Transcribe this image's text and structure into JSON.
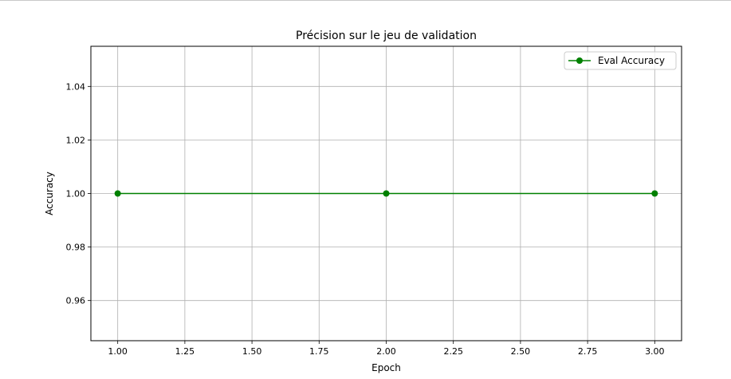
{
  "chart_data": {
    "type": "line",
    "title": "Précision sur le jeu de validation",
    "xlabel": "Epoch",
    "ylabel": "Accuracy",
    "xlim": [
      0.9,
      3.1
    ],
    "ylim": [
      0.945,
      1.055
    ],
    "xticks": [
      1.0,
      1.25,
      1.5,
      1.75,
      2.0,
      2.25,
      2.5,
      2.75,
      3.0
    ],
    "xtick_labels": [
      "1.00",
      "1.25",
      "1.50",
      "1.75",
      "2.00",
      "2.25",
      "2.50",
      "2.75",
      "3.00"
    ],
    "yticks": [
      0.96,
      0.98,
      1.0,
      1.02,
      1.04
    ],
    "ytick_labels": [
      "0.96",
      "0.98",
      "1.00",
      "1.02",
      "1.04"
    ],
    "grid": true,
    "legend_position": "top-right",
    "series": [
      {
        "name": "Eval Accuracy",
        "color": "#008000",
        "marker": "circle",
        "x": [
          1,
          2,
          3
        ],
        "y": [
          1.0,
          1.0,
          1.0
        ]
      }
    ]
  }
}
